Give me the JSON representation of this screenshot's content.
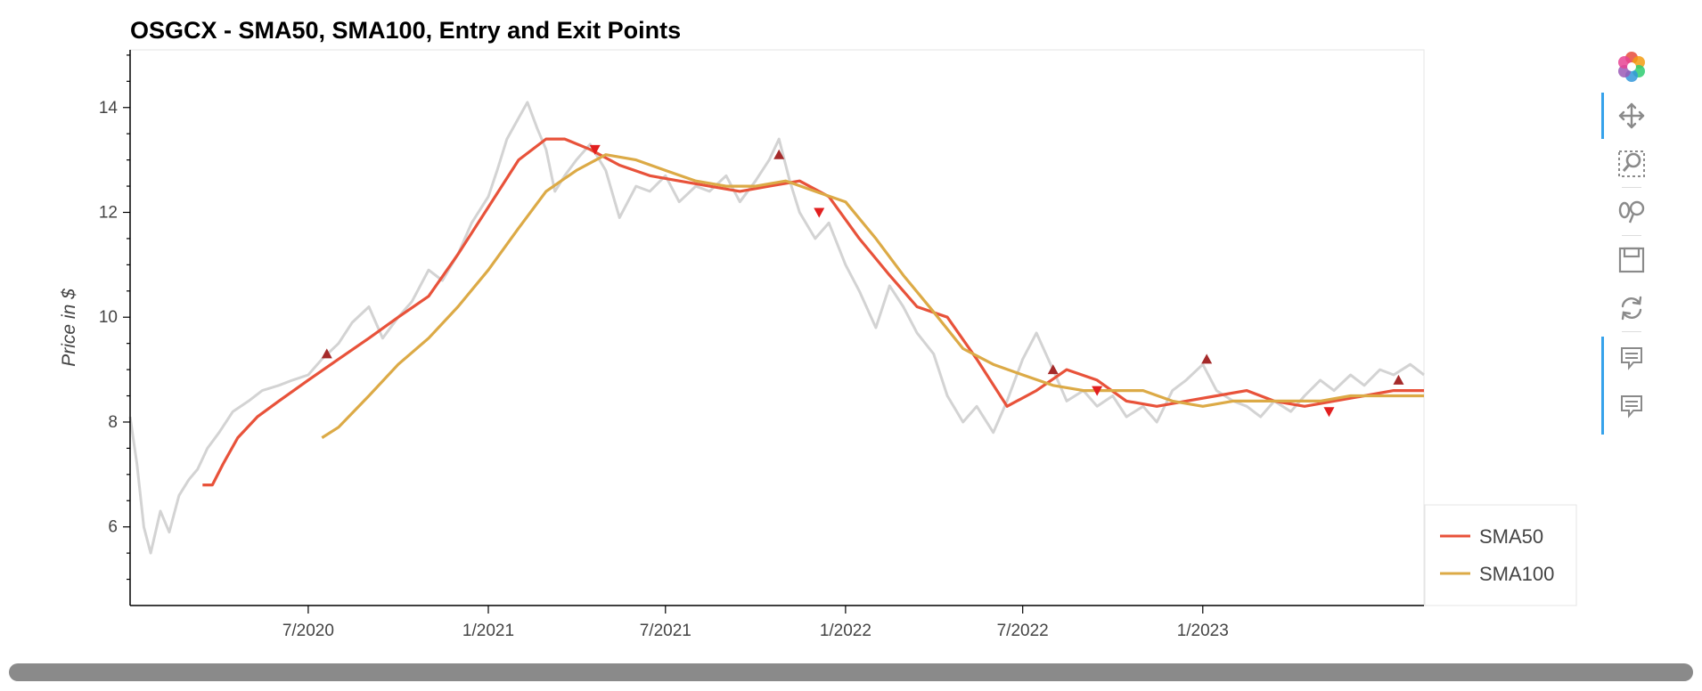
{
  "chart_data": {
    "type": "line",
    "title": "OSGCX - SMA50, SMA100, Entry and Exit Points",
    "ylabel": "Price in $",
    "xlabel": "",
    "xlim": [
      "2020-01-01",
      "2023-08-15"
    ],
    "ylim": [
      4.5,
      15.1
    ],
    "y_ticks": [
      6,
      8,
      10,
      12,
      14
    ],
    "x_ticks": [
      {
        "label": "7/2020",
        "date": "2020-07-01"
      },
      {
        "label": "1/2021",
        "date": "2021-01-01"
      },
      {
        "label": "7/2021",
        "date": "2021-07-01"
      },
      {
        "label": "1/2022",
        "date": "2022-01-01"
      },
      {
        "label": "7/2022",
        "date": "2022-07-01"
      },
      {
        "label": "1/2023",
        "date": "2023-01-01"
      }
    ],
    "grid": false,
    "legend_position": "bottom-right, outside plot",
    "series": [
      {
        "name": "",
        "role": "price",
        "color": "#d3d3d3",
        "points": [
          [
            "2020-01-01",
            8.1
          ],
          [
            "2020-01-08",
            7.2
          ],
          [
            "2020-01-15",
            6.0
          ],
          [
            "2020-01-22",
            5.5
          ],
          [
            "2020-02-01",
            6.3
          ],
          [
            "2020-02-10",
            5.9
          ],
          [
            "2020-02-20",
            6.6
          ],
          [
            "2020-03-01",
            6.9
          ],
          [
            "2020-03-10",
            7.1
          ],
          [
            "2020-03-20",
            7.5
          ],
          [
            "2020-04-01",
            7.8
          ],
          [
            "2020-04-15",
            8.2
          ],
          [
            "2020-05-01",
            8.4
          ],
          [
            "2020-05-15",
            8.6
          ],
          [
            "2020-06-01",
            8.7
          ],
          [
            "2020-06-15",
            8.8
          ],
          [
            "2020-07-01",
            8.9
          ],
          [
            "2020-07-15",
            9.2
          ],
          [
            "2020-08-01",
            9.5
          ],
          [
            "2020-08-15",
            9.9
          ],
          [
            "2020-09-01",
            10.2
          ],
          [
            "2020-09-15",
            9.6
          ],
          [
            "2020-10-01",
            10.0
          ],
          [
            "2020-10-15",
            10.3
          ],
          [
            "2020-11-01",
            10.9
          ],
          [
            "2020-11-15",
            10.7
          ],
          [
            "2020-12-01",
            11.2
          ],
          [
            "2020-12-15",
            11.8
          ],
          [
            "2021-01-01",
            12.3
          ],
          [
            "2021-01-10",
            12.8
          ],
          [
            "2021-01-20",
            13.4
          ],
          [
            "2021-02-01",
            13.8
          ],
          [
            "2021-02-10",
            14.1
          ],
          [
            "2021-02-20",
            13.6
          ],
          [
            "2021-03-01",
            13.2
          ],
          [
            "2021-03-10",
            12.4
          ],
          [
            "2021-03-20",
            12.7
          ],
          [
            "2021-04-01",
            13.0
          ],
          [
            "2021-04-15",
            13.3
          ],
          [
            "2021-05-01",
            12.8
          ],
          [
            "2021-05-15",
            11.9
          ],
          [
            "2021-06-01",
            12.5
          ],
          [
            "2021-06-15",
            12.4
          ],
          [
            "2021-07-01",
            12.7
          ],
          [
            "2021-07-15",
            12.2
          ],
          [
            "2021-08-01",
            12.5
          ],
          [
            "2021-08-15",
            12.4
          ],
          [
            "2021-09-01",
            12.7
          ],
          [
            "2021-09-15",
            12.2
          ],
          [
            "2021-10-01",
            12.6
          ],
          [
            "2021-10-15",
            13.0
          ],
          [
            "2021-10-25",
            13.4
          ],
          [
            "2021-11-05",
            12.6
          ],
          [
            "2021-11-15",
            12.0
          ],
          [
            "2021-12-01",
            11.5
          ],
          [
            "2021-12-15",
            11.8
          ],
          [
            "2022-01-01",
            11.0
          ],
          [
            "2022-01-15",
            10.5
          ],
          [
            "2022-02-01",
            9.8
          ],
          [
            "2022-02-15",
            10.6
          ],
          [
            "2022-03-01",
            10.2
          ],
          [
            "2022-03-15",
            9.7
          ],
          [
            "2022-04-01",
            9.3
          ],
          [
            "2022-04-15",
            8.5
          ],
          [
            "2022-05-01",
            8.0
          ],
          [
            "2022-05-15",
            8.3
          ],
          [
            "2022-06-01",
            7.8
          ],
          [
            "2022-06-15",
            8.4
          ],
          [
            "2022-07-01",
            9.2
          ],
          [
            "2022-07-15",
            9.7
          ],
          [
            "2022-08-01",
            9.0
          ],
          [
            "2022-08-15",
            8.4
          ],
          [
            "2022-09-01",
            8.6
          ],
          [
            "2022-09-15",
            8.3
          ],
          [
            "2022-10-01",
            8.5
          ],
          [
            "2022-10-15",
            8.1
          ],
          [
            "2022-11-01",
            8.3
          ],
          [
            "2022-11-15",
            8.0
          ],
          [
            "2022-12-01",
            8.6
          ],
          [
            "2022-12-15",
            8.8
          ],
          [
            "2023-01-01",
            9.1
          ],
          [
            "2023-01-15",
            8.6
          ],
          [
            "2023-02-01",
            8.4
          ],
          [
            "2023-02-15",
            8.3
          ],
          [
            "2023-03-01",
            8.1
          ],
          [
            "2023-03-15",
            8.4
          ],
          [
            "2023-04-01",
            8.2
          ],
          [
            "2023-04-15",
            8.5
          ],
          [
            "2023-05-01",
            8.8
          ],
          [
            "2023-05-15",
            8.6
          ],
          [
            "2023-06-01",
            8.9
          ],
          [
            "2023-06-15",
            8.7
          ],
          [
            "2023-07-01",
            9.0
          ],
          [
            "2023-07-15",
            8.9
          ],
          [
            "2023-08-01",
            9.1
          ],
          [
            "2023-08-15",
            8.9
          ]
        ]
      },
      {
        "name": "SMA50",
        "color": "#e8523a",
        "points": [
          [
            "2020-03-15",
            6.8
          ],
          [
            "2020-03-25",
            6.8
          ],
          [
            "2020-04-05",
            7.2
          ],
          [
            "2020-04-20",
            7.7
          ],
          [
            "2020-05-10",
            8.1
          ],
          [
            "2020-06-01",
            8.4
          ],
          [
            "2020-07-01",
            8.8
          ],
          [
            "2020-08-01",
            9.2
          ],
          [
            "2020-09-01",
            9.6
          ],
          [
            "2020-10-01",
            10.0
          ],
          [
            "2020-11-01",
            10.4
          ],
          [
            "2020-12-01",
            11.2
          ],
          [
            "2021-01-01",
            12.1
          ],
          [
            "2021-02-01",
            13.0
          ],
          [
            "2021-03-01",
            13.4
          ],
          [
            "2021-03-20",
            13.4
          ],
          [
            "2021-04-15",
            13.2
          ],
          [
            "2021-05-15",
            12.9
          ],
          [
            "2021-06-15",
            12.7
          ],
          [
            "2021-07-15",
            12.6
          ],
          [
            "2021-08-15",
            12.5
          ],
          [
            "2021-09-15",
            12.4
          ],
          [
            "2021-10-15",
            12.5
          ],
          [
            "2021-11-15",
            12.6
          ],
          [
            "2021-12-15",
            12.3
          ],
          [
            "2022-01-15",
            11.5
          ],
          [
            "2022-02-15",
            10.8
          ],
          [
            "2022-03-15",
            10.2
          ],
          [
            "2022-04-15",
            10.0
          ],
          [
            "2022-05-15",
            9.2
          ],
          [
            "2022-06-15",
            8.3
          ],
          [
            "2022-07-15",
            8.6
          ],
          [
            "2022-08-15",
            9.0
          ],
          [
            "2022-09-15",
            8.8
          ],
          [
            "2022-10-15",
            8.4
          ],
          [
            "2022-11-15",
            8.3
          ],
          [
            "2022-12-15",
            8.4
          ],
          [
            "2023-01-15",
            8.5
          ],
          [
            "2023-02-15",
            8.6
          ],
          [
            "2023-03-15",
            8.4
          ],
          [
            "2023-04-15",
            8.3
          ],
          [
            "2023-05-15",
            8.4
          ],
          [
            "2023-06-15",
            8.5
          ],
          [
            "2023-07-15",
            8.6
          ],
          [
            "2023-08-15",
            8.6
          ]
        ]
      },
      {
        "name": "SMA100",
        "color": "#dcaa46",
        "points": [
          [
            "2020-07-15",
            7.7
          ],
          [
            "2020-08-01",
            7.9
          ],
          [
            "2020-09-01",
            8.5
          ],
          [
            "2020-10-01",
            9.1
          ],
          [
            "2020-11-01",
            9.6
          ],
          [
            "2020-12-01",
            10.2
          ],
          [
            "2021-01-01",
            10.9
          ],
          [
            "2021-02-01",
            11.7
          ],
          [
            "2021-03-01",
            12.4
          ],
          [
            "2021-04-01",
            12.8
          ],
          [
            "2021-05-01",
            13.1
          ],
          [
            "2021-06-01",
            13.0
          ],
          [
            "2021-07-01",
            12.8
          ],
          [
            "2021-08-01",
            12.6
          ],
          [
            "2021-09-01",
            12.5
          ],
          [
            "2021-10-01",
            12.5
          ],
          [
            "2021-11-01",
            12.6
          ],
          [
            "2021-12-01",
            12.4
          ],
          [
            "2022-01-01",
            12.2
          ],
          [
            "2022-02-01",
            11.5
          ],
          [
            "2022-03-01",
            10.8
          ],
          [
            "2022-04-01",
            10.1
          ],
          [
            "2022-05-01",
            9.4
          ],
          [
            "2022-06-01",
            9.1
          ],
          [
            "2022-07-01",
            8.9
          ],
          [
            "2022-08-01",
            8.7
          ],
          [
            "2022-09-01",
            8.6
          ],
          [
            "2022-10-01",
            8.6
          ],
          [
            "2022-11-01",
            8.6
          ],
          [
            "2022-12-01",
            8.4
          ],
          [
            "2023-01-01",
            8.3
          ],
          [
            "2023-02-01",
            8.4
          ],
          [
            "2023-03-01",
            8.4
          ],
          [
            "2023-04-01",
            8.4
          ],
          [
            "2023-05-01",
            8.4
          ],
          [
            "2023-06-01",
            8.5
          ],
          [
            "2023-07-01",
            8.5
          ],
          [
            "2023-08-15",
            8.5
          ]
        ]
      }
    ],
    "entry_points": [
      [
        "2020-07-20",
        9.3
      ],
      [
        "2021-10-25",
        13.1
      ],
      [
        "2022-08-01",
        9.0
      ],
      [
        "2023-01-05",
        9.2
      ],
      [
        "2023-07-20",
        8.8
      ]
    ],
    "exit_points": [
      [
        "2021-04-20",
        13.2
      ],
      [
        "2021-12-05",
        12.0
      ],
      [
        "2022-09-15",
        8.6
      ],
      [
        "2023-05-10",
        8.2
      ]
    ],
    "entry_color": "#a52a2a",
    "exit_color": "#e21f1f"
  },
  "legend": {
    "items": [
      {
        "label": "SMA50",
        "color": "#e8523a"
      },
      {
        "label": "SMA100",
        "color": "#dcaa46"
      }
    ]
  },
  "toolbar": {
    "tools": [
      {
        "icon": "bokeh-logo-icon",
        "active": false
      },
      {
        "icon": "pan-icon",
        "active": true
      },
      {
        "icon": "box-zoom-icon",
        "active": false
      },
      {
        "icon": "wheel-zoom-icon",
        "active": false
      },
      {
        "icon": "save-icon",
        "active": false
      },
      {
        "icon": "reset-icon",
        "active": false
      },
      {
        "icon": "hover-icon",
        "active": true
      },
      {
        "icon": "hover-icon",
        "active": true
      }
    ]
  }
}
